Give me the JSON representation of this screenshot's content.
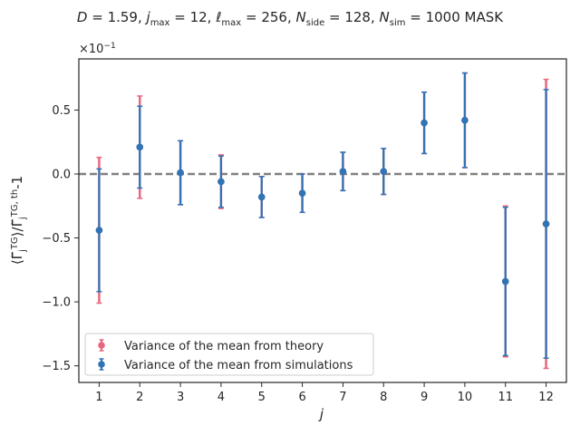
{
  "chart_data": {
    "type": "scatter",
    "title": "D = 1.59,  j_max = 12,  ℓ_max = 256,  N_side = 128, N_sim = 1000 MASK",
    "xlabel": "j",
    "ylabel": "⟨Γ̃_j^{TG}⟩/Γ̃_j^{TG, th}-1",
    "exponent_label": "×10",
    "exponent_power": "−1",
    "xlim": [
      0.5,
      12.5
    ],
    "ylim": [
      -1.63,
      0.9
    ],
    "x_ticks": [
      "1",
      "2",
      "3",
      "4",
      "5",
      "6",
      "7",
      "8",
      "9",
      "10",
      "11",
      "12"
    ],
    "y_ticks": [
      {
        "value": 0.5,
        "label": "0.5"
      },
      {
        "value": 0.0,
        "label": "0.0"
      },
      {
        "value": -0.5,
        "label": "−0.5"
      },
      {
        "value": -1.0,
        "label": "−1.0"
      },
      {
        "value": -1.5,
        "label": "−1.5"
      }
    ],
    "reference_line": 0.0,
    "x": [
      1,
      2,
      3,
      4,
      5,
      6,
      7,
      8,
      9,
      10,
      11,
      12
    ],
    "series": [
      {
        "name": "Variance of the mean from theory",
        "color": "#e8677e",
        "values": [
          -0.44,
          0.21,
          0.01,
          -0.06,
          -0.18,
          -0.15,
          0.02,
          0.02,
          0.4,
          0.42,
          -0.84,
          -0.39
        ],
        "errors": [
          0.57,
          0.4,
          0.25,
          0.21,
          0.16,
          0.15,
          0.15,
          0.18,
          0.24,
          0.37,
          0.59,
          1.13
        ]
      },
      {
        "name": "Variance of the mean from simulations",
        "color": "#2f74b5",
        "values": [
          -0.44,
          0.21,
          0.01,
          -0.06,
          -0.18,
          -0.15,
          0.02,
          0.02,
          0.4,
          0.42,
          -0.84,
          -0.39
        ],
        "errors": [
          0.48,
          0.32,
          0.25,
          0.2,
          0.16,
          0.15,
          0.15,
          0.18,
          0.24,
          0.37,
          0.58,
          1.05
        ]
      }
    ],
    "legend_position": "lower-left",
    "grid": false
  }
}
